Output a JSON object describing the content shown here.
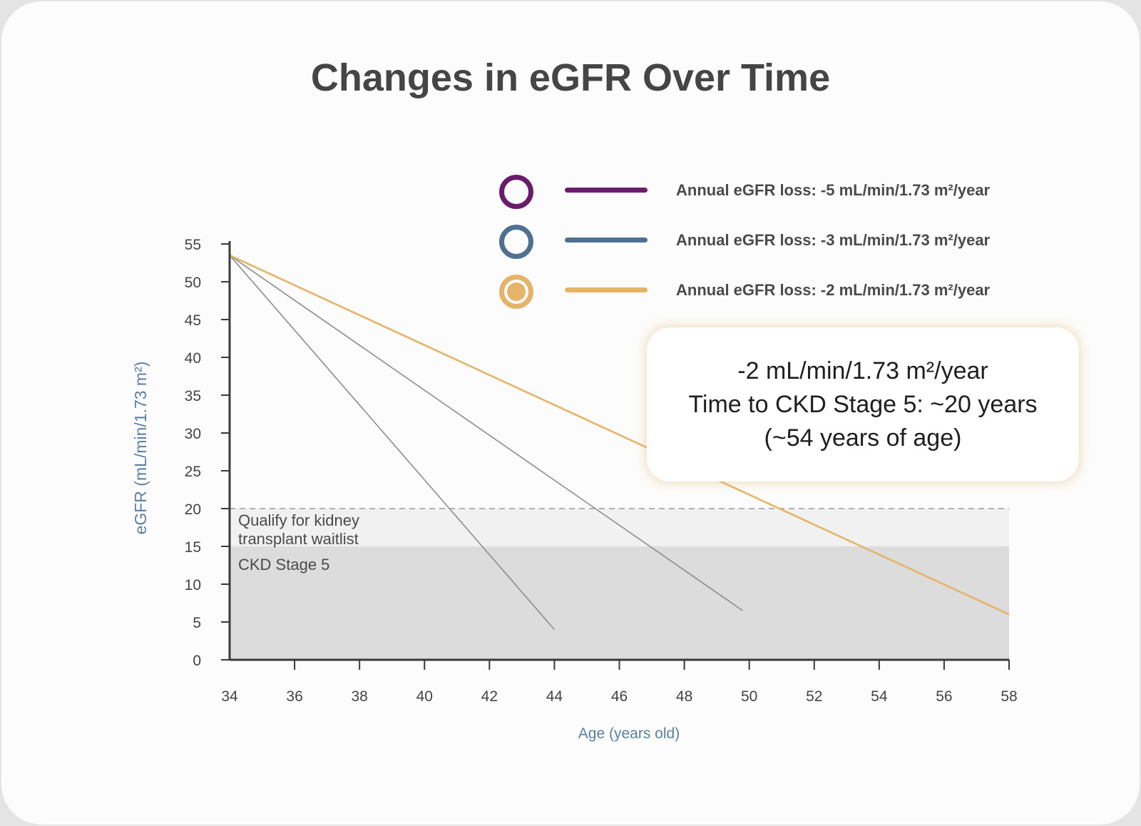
{
  "title": "Changes in eGFR Over Time",
  "colors": {
    "purple": "#6a1b6b",
    "blue": "#4f7191",
    "gold": "#e6b469",
    "sim_lines": "#8c8c8c",
    "stage5_band": "#dcdcdd",
    "waitlist_band": "#f1f1f1",
    "axis_label": "#5b7fa3"
  },
  "legend": [
    {
      "label": "Annual eGFR loss: -5 mL/min/1.73 m²/year",
      "color": "#6a1b6b",
      "marker": "ring"
    },
    {
      "label": "Annual eGFR loss: -3 mL/min/1.73 m²/year",
      "color": "#4f7191",
      "marker": "ring"
    },
    {
      "label": "Annual eGFR loss: -2 mL/min/1.73 m²/year",
      "color": "#e6b469",
      "marker": "filled"
    }
  ],
  "callout": {
    "line1": "-2 mL/min/1.73 m²/year",
    "line2": "Time to CKD Stage 5: ~20 years",
    "line3": "(~54 years of age)"
  },
  "chart_data": {
    "type": "line",
    "xlabel": "Age (years old)",
    "ylabel": "eGFR (mL/min/1.73 m²)",
    "xlim": [
      34,
      58
    ],
    "ylim": [
      0,
      55
    ],
    "x_ticks": [
      34,
      36,
      38,
      40,
      42,
      44,
      46,
      48,
      50,
      52,
      54,
      56,
      58
    ],
    "y_ticks": [
      0,
      5,
      10,
      15,
      20,
      25,
      30,
      35,
      40,
      45,
      50,
      55
    ],
    "grid": false,
    "legend_position": "top-right",
    "bands": [
      {
        "label": "CKD Stage 5",
        "y_from": 0,
        "y_to": 15
      },
      {
        "label": "Qualify for kidney transplant waitlist",
        "y_from": 15,
        "y_to": 20
      }
    ],
    "series": [
      {
        "name": "Annual eGFR loss: -5 mL/min/1.73 m²/year",
        "x": [
          34,
          44
        ],
        "y": [
          53.5,
          4
        ]
      },
      {
        "name": "Annual eGFR loss: -3 mL/min/1.73 m²/year",
        "x": [
          34,
          49.8
        ],
        "y": [
          53.5,
          6.5
        ]
      },
      {
        "name": "Annual eGFR loss: -2 mL/min/1.73 m²/year",
        "x": [
          34,
          58
        ],
        "y": [
          53.5,
          6
        ]
      }
    ]
  }
}
